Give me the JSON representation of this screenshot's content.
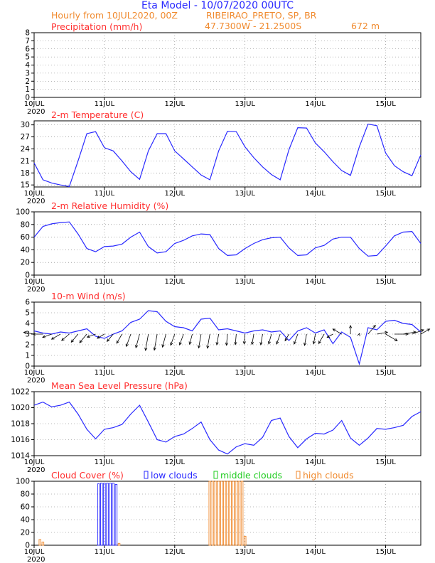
{
  "header": {
    "title": "Eta Model - 10/07/2020 00UTC",
    "hourly": "Hourly from 10JUL2020, 00Z",
    "station": "RIBEIRAO_PRETO, SP, BR",
    "coords": "47.7300W - 21.2500S",
    "elevation": "672  m"
  },
  "colors": {
    "line": "#2a2aff",
    "panel_title": "#ff3030",
    "header": "#f08a2e",
    "low_clouds": "#2a2aff",
    "middle_clouds": "#22cc22",
    "high_clouds": "#f08a2e",
    "wind_arrows": "#000000",
    "grid": "#000000"
  },
  "x_axis": {
    "tick_labels": [
      "10JUL",
      "11JUL",
      "12JUL",
      "13JUL",
      "14JUL",
      "15JUL"
    ],
    "year_label": "2020",
    "hours": [
      0,
      24,
      48,
      72,
      96,
      120
    ],
    "range": [
      0,
      132
    ]
  },
  "legend": {
    "low": "low clouds",
    "middle": "middle clouds",
    "high": "high clouds"
  },
  "chart_data": [
    {
      "type": "line",
      "title": "Precipitation (mm/h)",
      "xlabel": "",
      "ylabel": "",
      "ylim": [
        0,
        8
      ],
      "yticks": [
        0,
        1,
        2,
        3,
        4,
        5,
        6,
        7,
        8
      ],
      "grid": "dotted",
      "x": [],
      "values": []
    },
    {
      "type": "line",
      "title": "2-m Temperature (C)",
      "xlabel": "",
      "ylabel": "",
      "ylim": [
        14.5,
        31
      ],
      "yticks": [
        15,
        18,
        21,
        24,
        27,
        30
      ],
      "grid": "dotted",
      "x": [
        0,
        3,
        6,
        9,
        12,
        15,
        18,
        21,
        24,
        27,
        30,
        33,
        36,
        39,
        42,
        45,
        48,
        51,
        54,
        57,
        60,
        63,
        66,
        69,
        72,
        75,
        78,
        81,
        84,
        87,
        90,
        93,
        96,
        99,
        102,
        105,
        108,
        111,
        114,
        117,
        120,
        123,
        126,
        129,
        132
      ],
      "values": [
        20.5,
        16.3,
        15.5,
        15,
        14.6,
        21,
        27.8,
        28.3,
        24.3,
        23.5,
        21,
        18.3,
        16.4,
        23.5,
        27.8,
        27.8,
        23.5,
        21.5,
        19.5,
        17.5,
        16.3,
        23.5,
        28.4,
        28.3,
        24.5,
        21.8,
        19.5,
        17.6,
        16.3,
        23.8,
        29.3,
        29.2,
        25.5,
        23.3,
        20.8,
        18.6,
        17.4,
        24.5,
        30.2,
        29.8,
        23,
        19.8,
        18.3,
        17.3,
        22.5
      ]
    },
    {
      "type": "line",
      "title": "2-m Relative Humidity (%)",
      "xlabel": "",
      "ylabel": "",
      "ylim": [
        0,
        100
      ],
      "yticks": [
        0,
        20,
        40,
        60,
        80,
        100
      ],
      "grid": "dotted",
      "x": [
        0,
        3,
        6,
        9,
        12,
        15,
        18,
        21,
        24,
        27,
        30,
        33,
        36,
        39,
        42,
        45,
        48,
        51,
        54,
        57,
        60,
        63,
        66,
        69,
        72,
        75,
        78,
        81,
        84,
        87,
        90,
        93,
        96,
        99,
        102,
        105,
        108,
        111,
        114,
        117,
        120,
        123,
        126,
        129,
        132
      ],
      "values": [
        60,
        77,
        81,
        83,
        84,
        65,
        42,
        37,
        45,
        46,
        49,
        60,
        68,
        45,
        35,
        37,
        50,
        55,
        62,
        65,
        64,
        42,
        31,
        32,
        42,
        50,
        56,
        59,
        60,
        43,
        31,
        32,
        43,
        47,
        57,
        60,
        60,
        42,
        30,
        31,
        46,
        62,
        68,
        69,
        50
      ]
    },
    {
      "type": "line",
      "title": "10-m Wind (m/s)",
      "xlabel": "",
      "ylabel": "",
      "ylim": [
        0,
        6
      ],
      "yticks": [
        0,
        1,
        2,
        3,
        4,
        5,
        6
      ],
      "grid": "dotted",
      "x": [
        0,
        3,
        6,
        9,
        12,
        15,
        18,
        21,
        24,
        27,
        30,
        33,
        36,
        39,
        42,
        45,
        48,
        51,
        54,
        57,
        60,
        63,
        66,
        69,
        72,
        75,
        78,
        81,
        84,
        87,
        90,
        93,
        96,
        99,
        102,
        105,
        108,
        111,
        114,
        117,
        120,
        123,
        126,
        129,
        132
      ],
      "values": [
        3.3,
        3.1,
        3,
        3.2,
        3.1,
        3.3,
        3.5,
        2.8,
        2.6,
        3,
        3.3,
        4.1,
        4.4,
        5.2,
        5.1,
        4.2,
        3.7,
        3.6,
        3.3,
        4.4,
        4.5,
        3.4,
        3.5,
        3.3,
        3.1,
        3.3,
        3.4,
        3.2,
        3.3,
        2.4,
        3.3,
        3.6,
        3.1,
        3.4,
        2.1,
        3.2,
        2.7,
        0.2,
        3.6,
        3.4,
        4.2,
        4.3,
        4,
        3.9,
        3.2
      ],
      "wind_vectors": {
        "x": [
          0,
          3,
          6,
          9,
          12,
          15,
          18,
          21,
          24,
          27,
          30,
          33,
          36,
          39,
          42,
          45,
          48,
          51,
          54,
          57,
          60,
          63,
          66,
          69,
          72,
          75,
          78,
          81,
          84,
          87,
          90,
          93,
          96,
          99,
          102,
          105,
          108,
          111,
          114,
          117,
          120,
          123,
          126,
          129,
          132
        ],
        "speed": [
          3.3,
          3.1,
          3,
          3.2,
          3.1,
          3.3,
          3.5,
          2.8,
          2.6,
          3,
          3.3,
          4.1,
          4.4,
          5.2,
          5.1,
          4.2,
          3.7,
          3.6,
          3.3,
          4.4,
          4.5,
          3.4,
          3.5,
          3.3,
          3.1,
          3.3,
          3.4,
          3.2,
          3.3,
          2.4,
          3.3,
          3.6,
          3.1,
          3.4,
          2.1,
          3.2,
          2.7,
          0.2,
          3.6,
          3.4,
          4.2,
          4.3,
          4,
          3.9,
          3.2
        ],
        "direction_from_deg": [
          100,
          90,
          70,
          60,
          50,
          40,
          40,
          70,
          60,
          40,
          30,
          20,
          15,
          10,
          10,
          15,
          20,
          20,
          15,
          10,
          10,
          10,
          5,
          5,
          5,
          10,
          10,
          15,
          20,
          30,
          20,
          10,
          10,
          30,
          60,
          120,
          180,
          200,
          220,
          260,
          300,
          270,
          260,
          250,
          240
        ]
      }
    },
    {
      "type": "line",
      "title": "Mean Sea Level Pressure (hPa)",
      "xlabel": "",
      "ylabel": "",
      "ylim": [
        1014,
        1022
      ],
      "yticks": [
        1014,
        1016,
        1018,
        1020,
        1022
      ],
      "grid": "dotted",
      "x": [
        0,
        3,
        6,
        9,
        12,
        15,
        18,
        21,
        24,
        27,
        30,
        33,
        36,
        39,
        42,
        45,
        48,
        51,
        54,
        57,
        60,
        63,
        66,
        69,
        72,
        75,
        78,
        81,
        84,
        87,
        90,
        93,
        96,
        99,
        102,
        105,
        108,
        111,
        114,
        117,
        120,
        123,
        126,
        129,
        132
      ],
      "values": [
        1020.3,
        1020.7,
        1020.1,
        1020.3,
        1020.7,
        1019.2,
        1017.3,
        1016.1,
        1017.3,
        1017.5,
        1017.9,
        1019.2,
        1020.3,
        1018.2,
        1016,
        1015.7,
        1016.4,
        1016.7,
        1017.4,
        1018.2,
        1016,
        1014.7,
        1014.2,
        1015.1,
        1015.5,
        1015.3,
        1016.3,
        1018.4,
        1018.7,
        1016.4,
        1015,
        1016.1,
        1016.8,
        1016.7,
        1017.2,
        1018.4,
        1016.2,
        1015.3,
        1016.2,
        1017.4,
        1017.3,
        1017.5,
        1017.8,
        1018.9,
        1019.5
      ]
    },
    {
      "type": "bar",
      "title": "Cloud Cover (%)",
      "xlabel": "",
      "ylabel": "",
      "ylim": [
        0,
        100
      ],
      "yticks": [
        0,
        20,
        40,
        60,
        80,
        100
      ],
      "grid": "dotted",
      "series": [
        {
          "name": "low clouds",
          "x": [
            22,
            23,
            24,
            25,
            26,
            27,
            28
          ],
          "values": [
            96,
            97,
            97,
            97,
            97,
            97,
            95
          ]
        },
        {
          "name": "high clouds",
          "x": [
            2,
            3,
            29,
            60,
            61,
            62,
            63,
            64,
            65,
            66,
            67,
            68,
            69,
            70,
            71,
            72
          ],
          "values": [
            9,
            5,
            3,
            100,
            100,
            100,
            100,
            100,
            100,
            100,
            100,
            100,
            100,
            100,
            100,
            14
          ]
        },
        {
          "name": "middle clouds",
          "x": [],
          "values": []
        }
      ]
    }
  ]
}
